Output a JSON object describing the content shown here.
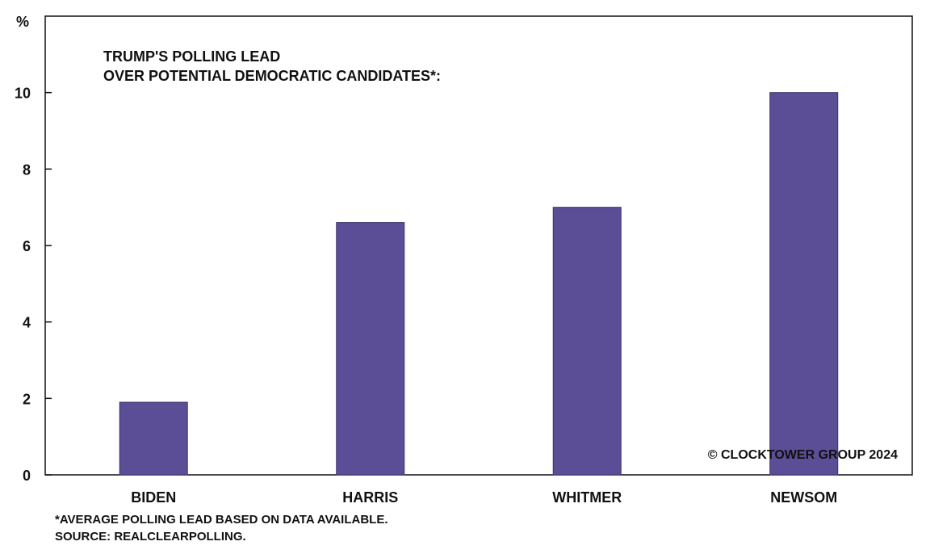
{
  "chart_data": {
    "type": "bar",
    "title_lines": [
      "TRUMP'S POLLING LEAD",
      "OVER POTENTIAL DEMOCRATIC CANDIDATES*:"
    ],
    "ylabel": "%",
    "categories": [
      "BIDEN",
      "HARRIS",
      "WHITMER",
      "NEWSOM"
    ],
    "values": [
      1.9,
      6.6,
      7.0,
      10.0
    ],
    "ylim": [
      0,
      12
    ],
    "yticks": [
      0,
      2,
      4,
      6,
      8,
      10
    ],
    "grid": false,
    "bar_color": "#5c4e96",
    "watermark": "© CLOCKTOWER GROUP 2024",
    "footnotes": [
      "*AVERAGE POLLING LEAD BASED ON DATA AVAILABLE.",
      "SOURCE: REALCLEARPOLLING."
    ]
  }
}
